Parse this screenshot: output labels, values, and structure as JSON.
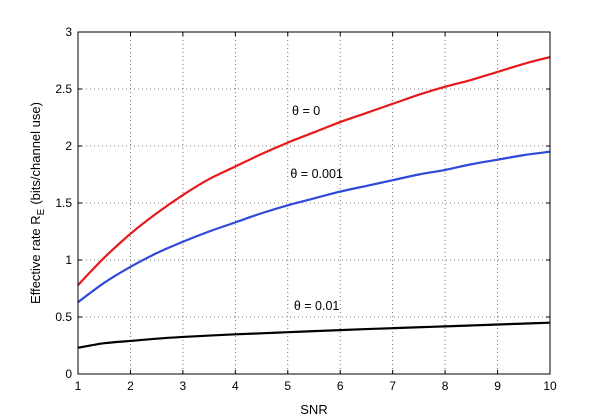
{
  "chart_data": {
    "type": "line",
    "xlabel": "SNR",
    "ylabel_main": "Effective rate R",
    "ylabel_sub": "E",
    "ylabel_units": "(bits/channel use)",
    "xlim": [
      1,
      10
    ],
    "ylim": [
      0,
      3
    ],
    "xticks": [
      1,
      2,
      3,
      4,
      5,
      6,
      7,
      8,
      9,
      10
    ],
    "yticks": [
      0,
      0.5,
      1,
      1.5,
      2,
      2.5,
      3
    ],
    "ytick_labels": [
      "0",
      "0.5",
      "1",
      "1.5",
      "2",
      "2.5",
      "3"
    ],
    "grid": true,
    "x": [
      1,
      1.5,
      2,
      2.5,
      3,
      3.5,
      4,
      4.5,
      5,
      5.5,
      6,
      6.5,
      7,
      7.5,
      8,
      8.5,
      9,
      9.5,
      10
    ],
    "series": [
      {
        "color": "#e8191a",
        "annotation": "θ = 0",
        "values": [
          0.78,
          1.02,
          1.23,
          1.41,
          1.57,
          1.71,
          1.82,
          1.93,
          2.03,
          2.12,
          2.21,
          2.29,
          2.37,
          2.45,
          2.52,
          2.58,
          2.65,
          2.72,
          2.78
        ]
      },
      {
        "color": "#2f49d8",
        "annotation": "θ = 0.001",
        "values": [
          0.63,
          0.8,
          0.94,
          1.06,
          1.16,
          1.25,
          1.33,
          1.41,
          1.48,
          1.54,
          1.6,
          1.65,
          1.7,
          1.75,
          1.79,
          1.84,
          1.88,
          1.92,
          1.95
        ]
      },
      {
        "color": "#000000",
        "annotation": "θ = 0.01",
        "values": [
          0.23,
          0.27,
          0.29,
          0.31,
          0.325,
          0.337,
          0.348,
          0.357,
          0.367,
          0.376,
          0.385,
          0.394,
          0.402,
          0.41,
          0.418,
          0.426,
          0.434,
          0.442,
          0.45
        ]
      }
    ],
    "annotations": [
      {
        "text": "θ = 0",
        "x": 5.35,
        "y": 2.27
      },
      {
        "text": "θ = 0.001",
        "x": 5.55,
        "y": 1.72
      },
      {
        "text": "θ = 0.01",
        "x": 5.55,
        "y": 0.56
      }
    ]
  }
}
